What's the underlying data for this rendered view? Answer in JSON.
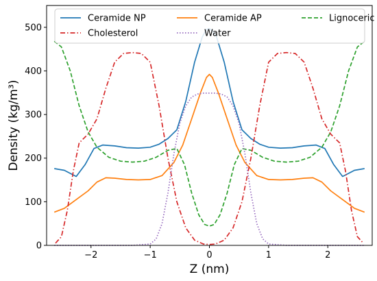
{
  "chart_data": {
    "type": "line",
    "xlabel": "Z (nm)",
    "ylabel": "Density (kg/m³)",
    "xlim": [
      -2.75,
      2.75
    ],
    "ylim": [
      0,
      550
    ],
    "xticks": [
      -2,
      -1,
      0,
      1,
      2
    ],
    "xtick_labels": [
      "−2",
      "−1",
      "0",
      "1",
      "2"
    ],
    "yticks": [
      0,
      100,
      200,
      300,
      400,
      500
    ],
    "ytick_labels": [
      "0",
      "100",
      "200",
      "300",
      "400",
      "500"
    ],
    "grid": false,
    "legend": "top, 3 columns",
    "series": [
      {
        "name": "Ceramide NP",
        "color": "#1f77b4",
        "dash": "solid",
        "x": [
          -2.62,
          -2.45,
          -2.25,
          -2.1,
          -1.95,
          -1.8,
          -1.6,
          -1.4,
          -1.2,
          -1.0,
          -0.85,
          -0.7,
          -0.55,
          -0.4,
          -0.25,
          -0.12,
          -0.05,
          0.0,
          0.05,
          0.12,
          0.25,
          0.4,
          0.55,
          0.7,
          0.85,
          1.0,
          1.2,
          1.4,
          1.6,
          1.8,
          1.95,
          2.1,
          2.25,
          2.45,
          2.62
        ],
        "y": [
          176,
          172,
          158,
          185,
          222,
          230,
          228,
          224,
          223,
          225,
          232,
          245,
          265,
          330,
          420,
          478,
          495,
          497,
          492,
          478,
          420,
          330,
          265,
          245,
          232,
          225,
          223,
          224,
          228,
          230,
          222,
          185,
          158,
          172,
          176
        ]
      },
      {
        "name": "Ceramide AP",
        "color": "#ff7f0e",
        "dash": "solid",
        "x": [
          -2.62,
          -2.45,
          -2.25,
          -2.05,
          -1.9,
          -1.75,
          -1.6,
          -1.4,
          -1.2,
          -1.0,
          -0.8,
          -0.6,
          -0.45,
          -0.3,
          -0.15,
          -0.05,
          0.0,
          0.05,
          0.15,
          0.3,
          0.45,
          0.6,
          0.8,
          1.0,
          1.2,
          1.4,
          1.6,
          1.75,
          1.9,
          2.05,
          2.25,
          2.45,
          2.62
        ],
        "y": [
          76,
          85,
          105,
          125,
          145,
          155,
          154,
          151,
          150,
          151,
          160,
          190,
          230,
          290,
          350,
          385,
          392,
          385,
          350,
          290,
          230,
          190,
          160,
          151,
          150,
          151,
          154,
          155,
          145,
          125,
          105,
          85,
          76
        ]
      },
      {
        "name": "Lignoceric acid",
        "color": "#2ca02c",
        "dash": "dashed",
        "x": [
          -2.62,
          -2.5,
          -2.35,
          -2.2,
          -2.05,
          -1.9,
          -1.7,
          -1.5,
          -1.3,
          -1.1,
          -0.9,
          -0.7,
          -0.55,
          -0.42,
          -0.3,
          -0.18,
          -0.08,
          0.0,
          0.08,
          0.18,
          0.3,
          0.42,
          0.55,
          0.7,
          0.9,
          1.1,
          1.3,
          1.5,
          1.7,
          1.9,
          2.05,
          2.2,
          2.35,
          2.5,
          2.62
        ],
        "y": [
          468,
          455,
          400,
          320,
          260,
          225,
          202,
          193,
          191,
          193,
          202,
          218,
          222,
          185,
          120,
          70,
          48,
          44,
          48,
          70,
          120,
          185,
          222,
          218,
          202,
          193,
          191,
          193,
          202,
          225,
          260,
          320,
          400,
          455,
          468
        ]
      },
      {
        "name": "Cholesterol",
        "color": "#d62728",
        "dash": "dashdot",
        "x": [
          -2.6,
          -2.5,
          -2.4,
          -2.3,
          -2.2,
          -2.05,
          -1.9,
          -1.75,
          -1.6,
          -1.45,
          -1.3,
          -1.15,
          -1.0,
          -0.85,
          -0.7,
          -0.55,
          -0.4,
          -0.25,
          -0.1,
          0.0,
          0.1,
          0.25,
          0.4,
          0.55,
          0.7,
          0.85,
          1.0,
          1.15,
          1.3,
          1.45,
          1.6,
          1.75,
          1.9,
          2.05,
          2.2,
          2.3,
          2.4,
          2.5,
          2.6
        ],
        "y": [
          5,
          20,
          80,
          170,
          235,
          255,
          290,
          360,
          420,
          440,
          442,
          440,
          420,
          320,
          200,
          100,
          40,
          12,
          3,
          2,
          3,
          12,
          40,
          100,
          200,
          320,
          420,
          440,
          442,
          440,
          420,
          360,
          290,
          255,
          235,
          170,
          80,
          20,
          5
        ]
      },
      {
        "name": "Water",
        "color": "#9467bd",
        "dash": "dotted",
        "x": [
          -2.62,
          -1.3,
          -1.0,
          -0.9,
          -0.8,
          -0.7,
          -0.6,
          -0.5,
          -0.4,
          -0.3,
          -0.2,
          -0.1,
          0.0,
          0.1,
          0.2,
          0.3,
          0.4,
          0.5,
          0.6,
          0.7,
          0.8,
          0.9,
          1.0,
          1.3,
          2.62
        ],
        "y": [
          0,
          0,
          3,
          15,
          50,
          120,
          210,
          280,
          320,
          340,
          347,
          349,
          349,
          349,
          347,
          340,
          320,
          280,
          210,
          120,
          50,
          15,
          3,
          0,
          0
        ]
      }
    ]
  }
}
